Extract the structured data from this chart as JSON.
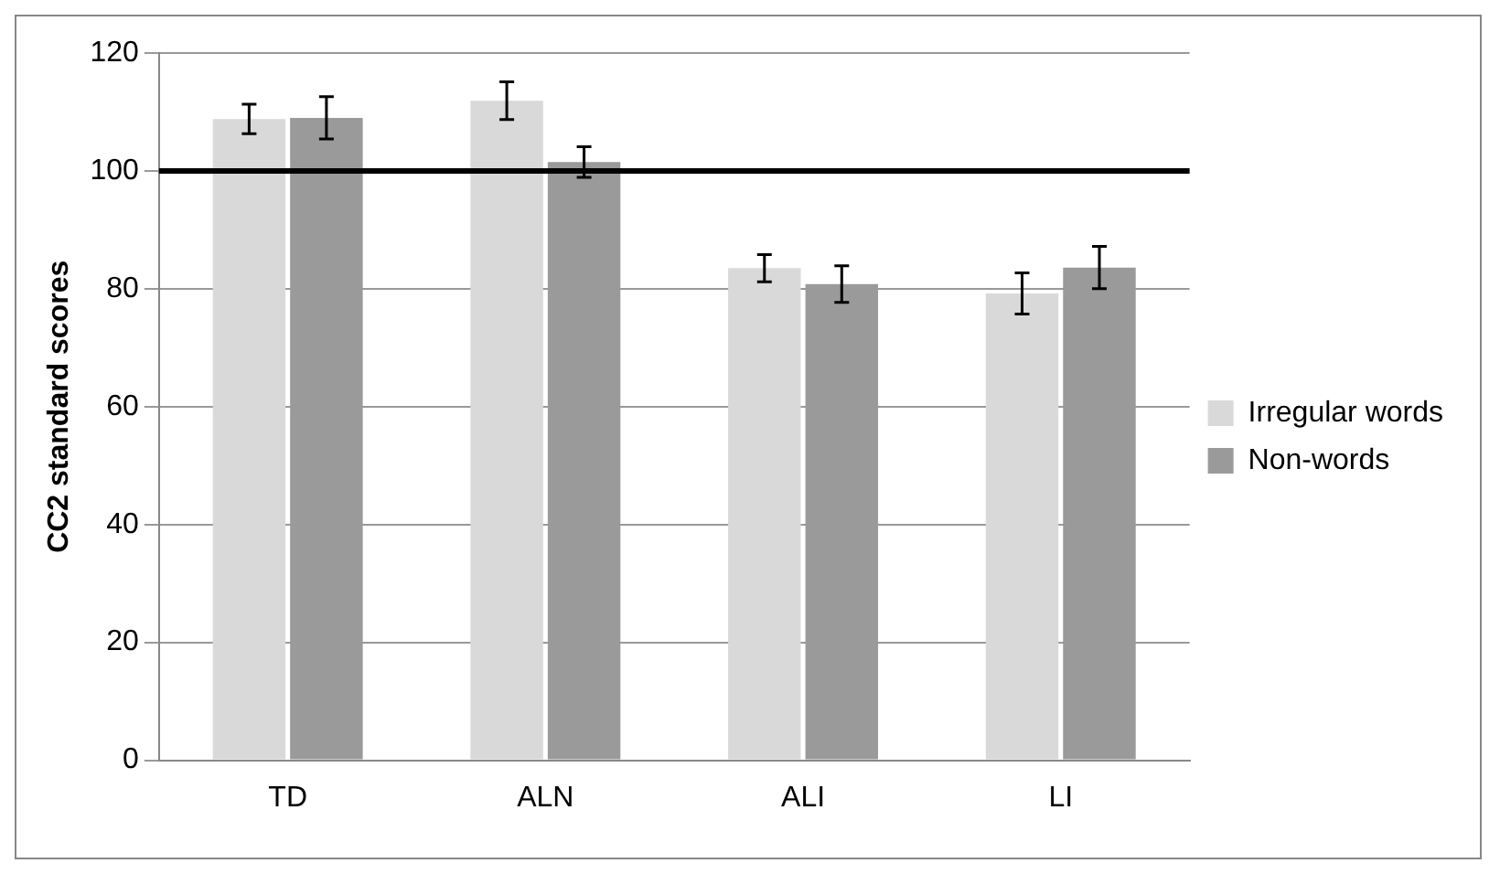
{
  "chart_data": {
    "type": "bar",
    "ylabel": "CC2 standard scores",
    "categories": [
      "TD",
      "ALN",
      "ALI",
      "LI"
    ],
    "series": [
      {
        "name": "Irregular words",
        "color": "#d9d9d9",
        "values": [
          108.8,
          111.9,
          83.5,
          79.2
        ],
        "errors": [
          2.5,
          3.2,
          2.3,
          3.5
        ]
      },
      {
        "name": "Non-words",
        "color": "#9a9a9a",
        "values": [
          109.0,
          101.5,
          80.8,
          83.6
        ],
        "errors": [
          3.6,
          2.6,
          3.1,
          3.6
        ]
      }
    ],
    "ylim": [
      0,
      120
    ],
    "yticks": [
      0,
      20,
      40,
      60,
      80,
      100,
      120
    ],
    "grid": "y",
    "legend": "right",
    "ref_lines": [
      {
        "axis": "y",
        "value": 100,
        "color": "#000000"
      }
    ]
  }
}
